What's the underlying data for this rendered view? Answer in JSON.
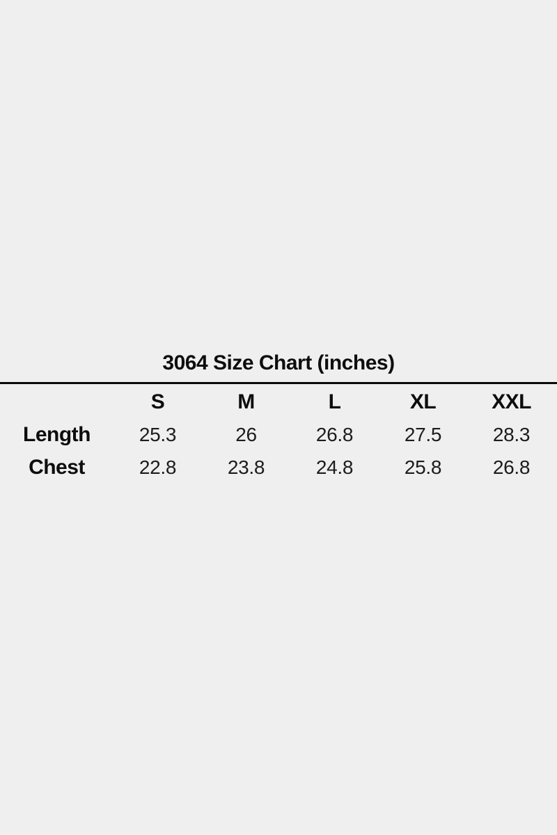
{
  "background_color": "#efefef",
  "text_color": "#0d0d0d",
  "chart_data": {
    "type": "table",
    "title": "3064 Size Chart (inches)",
    "columns": [
      "",
      "S",
      "M",
      "L",
      "XL",
      "XXL"
    ],
    "rows": [
      {
        "label": "Length",
        "values": [
          "25.3",
          "26",
          "26.8",
          "27.5",
          "28.3"
        ]
      },
      {
        "label": "Chest",
        "values": [
          "22.8",
          "23.8",
          "24.8",
          "25.8",
          "26.8"
        ]
      }
    ]
  }
}
